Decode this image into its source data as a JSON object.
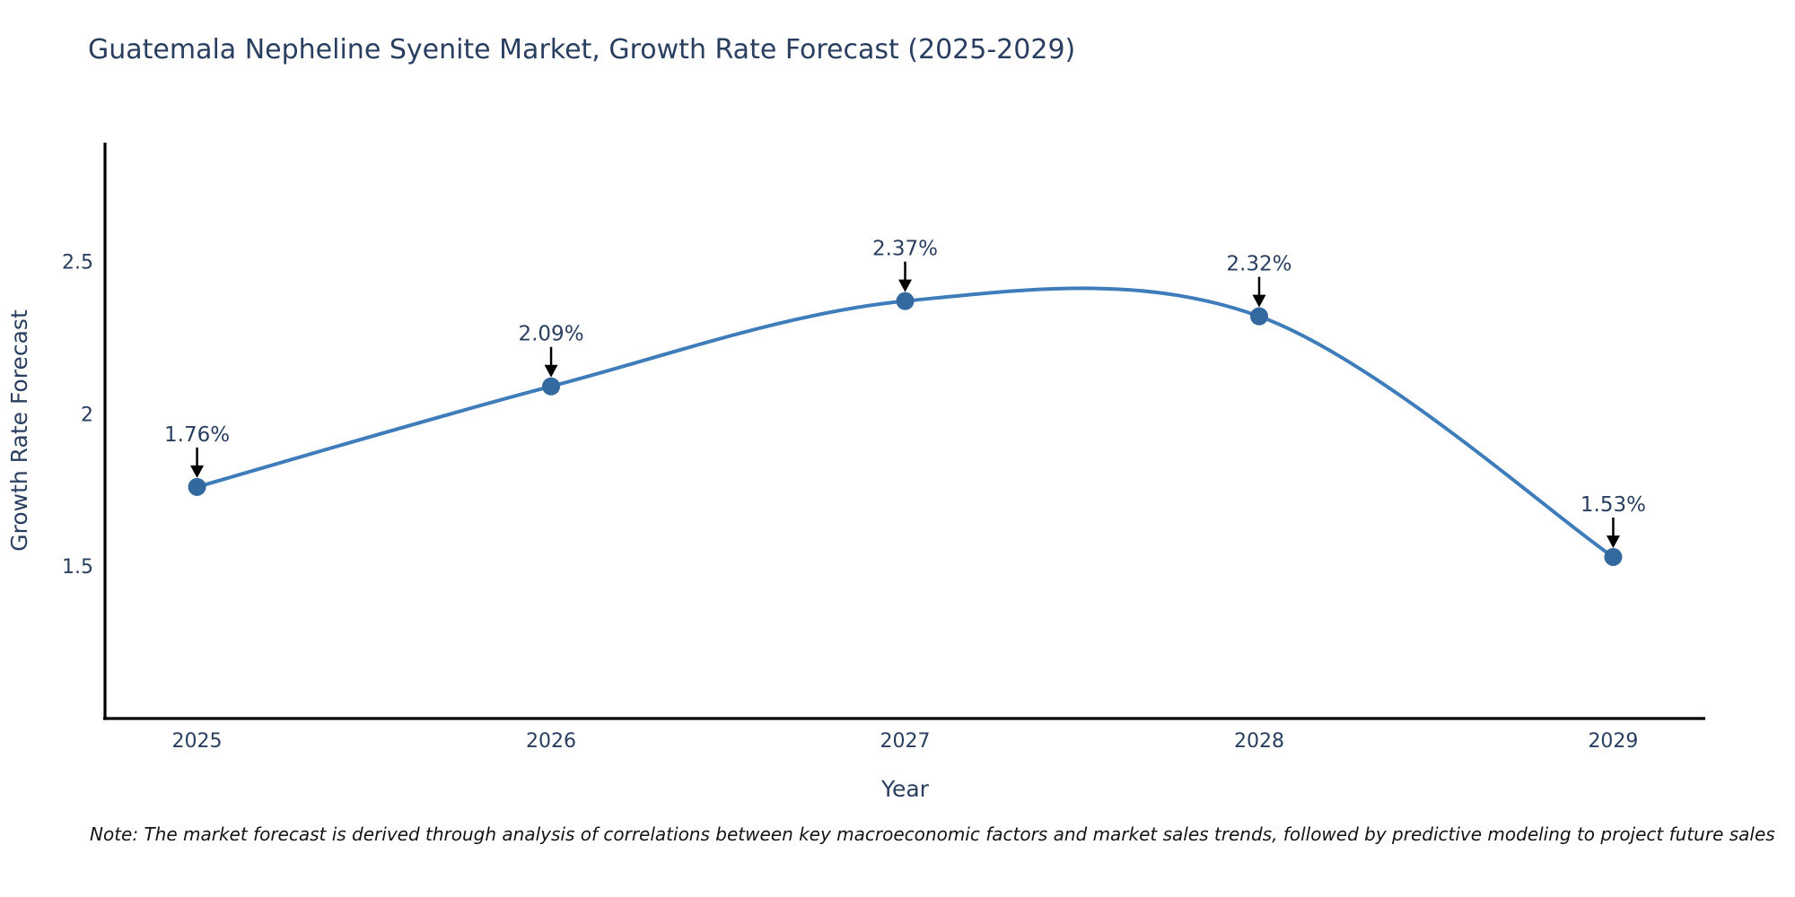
{
  "title": "Guatemala Nepheline Syenite Market, Growth Rate Forecast (2025-2029)",
  "note": "Note: The market forecast is derived through analysis of correlations between key macroeconomic factors and market sales trends, followed by predictive modeling to project future sales",
  "colors": {
    "background": "#ffffff",
    "title_text": "#2a3f5f",
    "axis_text": "#2a3f5f",
    "annotation_text": "#2a3f5f",
    "note_text": "#141414",
    "line": "#3e7cba",
    "marker": "#34699f",
    "axis_line": "#000000",
    "arrow": "#000000"
  },
  "chart_data": {
    "type": "line",
    "title": "Guatemala Nepheline Syenite Market, Growth Rate Forecast (2025-2029)",
    "x": [
      2025,
      2026,
      2027,
      2028,
      2029
    ],
    "series": [
      {
        "name": "Growth Rate Forecast",
        "values": [
          1.76,
          2.09,
          2.37,
          2.32,
          1.53
        ]
      }
    ],
    "point_labels": [
      "1.76%",
      "2.09%",
      "2.37%",
      "2.32%",
      "1.53%"
    ],
    "xlabel": "Year",
    "ylabel": "Growth Rate Forecast",
    "yticks": [
      1.5,
      2,
      2.5
    ],
    "xlim": [
      2024.74,
      2029.26
    ],
    "ylim": [
      1.0,
      2.89
    ],
    "line_shape": "spline",
    "grid": false,
    "legend_position": "none",
    "annotations": "value labels with downward black arrows above each point"
  }
}
